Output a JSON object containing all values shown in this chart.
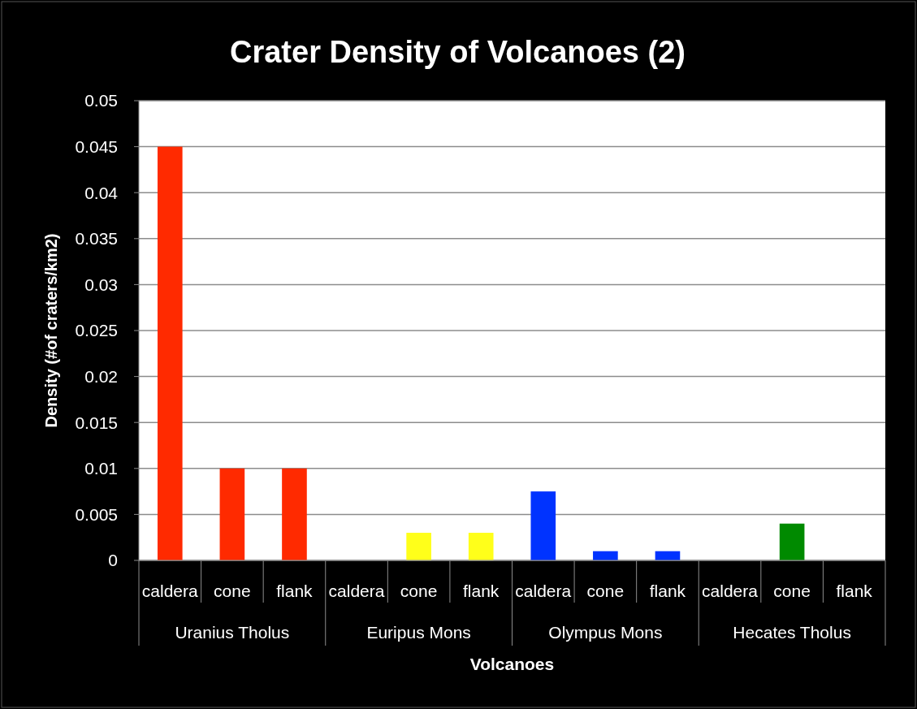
{
  "chart_data": {
    "type": "bar",
    "title": "Crater Density of Volcanoes (2)",
    "xlabel": "Volcanoes",
    "ylabel": "Density (#of craters/km2)",
    "categories": [
      "caldera",
      "cone",
      "flank",
      "caldera",
      "cone",
      "flank",
      "caldera",
      "cone",
      "flank",
      "caldera",
      "cone",
      "flank"
    ],
    "values": [
      0.045,
      0.01,
      0.01,
      0,
      0.003,
      0.003,
      0.0075,
      0.001,
      0.001,
      0,
      0.004,
      0
    ],
    "colors": [
      "#ff2a00",
      "#ff2a00",
      "#ff2a00",
      "#ffff1a",
      "#ffff1a",
      "#ffff1a",
      "#0033ff",
      "#0033ff",
      "#0033ff",
      "#008a00",
      "#008a00",
      "#008a00"
    ],
    "annotations": [
      "Uranius Tholus",
      "Euripus Mons",
      "Olympus Mons",
      "Hecates Tholus"
    ],
    "ylim": [
      0,
      0.05
    ],
    "yticks": [
      0,
      0.005,
      0.01,
      0.015,
      0.02,
      0.025,
      0.03,
      0.035,
      0.04,
      0.045,
      0.05
    ],
    "grid": "y"
  }
}
